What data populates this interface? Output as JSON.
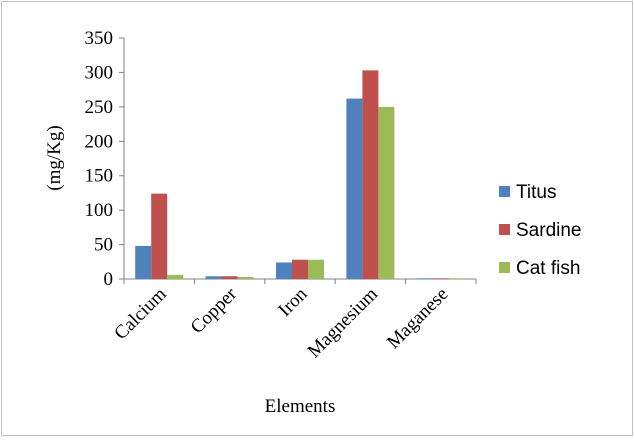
{
  "chart_data": {
    "type": "bar",
    "title": "",
    "xlabel": "Elements",
    "ylabel": "(mg/Kg)",
    "ylim": [
      0,
      350
    ],
    "yticks": [
      0,
      50,
      100,
      150,
      200,
      250,
      300,
      350
    ],
    "grid": false,
    "legend_position": "right",
    "categories": [
      "Calcium",
      "Copper",
      "Iron",
      "Magnesium",
      "Maganese"
    ],
    "series": [
      {
        "name": "Titus",
        "color": "#4F81BD",
        "values": [
          48,
          4,
          24,
          262,
          1
        ]
      },
      {
        "name": "Sardine",
        "color": "#C0504D",
        "values": [
          124,
          4,
          28,
          303,
          1
        ]
      },
      {
        "name": "Cat fish",
        "color": "#9BBB59",
        "values": [
          6,
          3,
          28,
          250,
          1
        ]
      }
    ]
  }
}
